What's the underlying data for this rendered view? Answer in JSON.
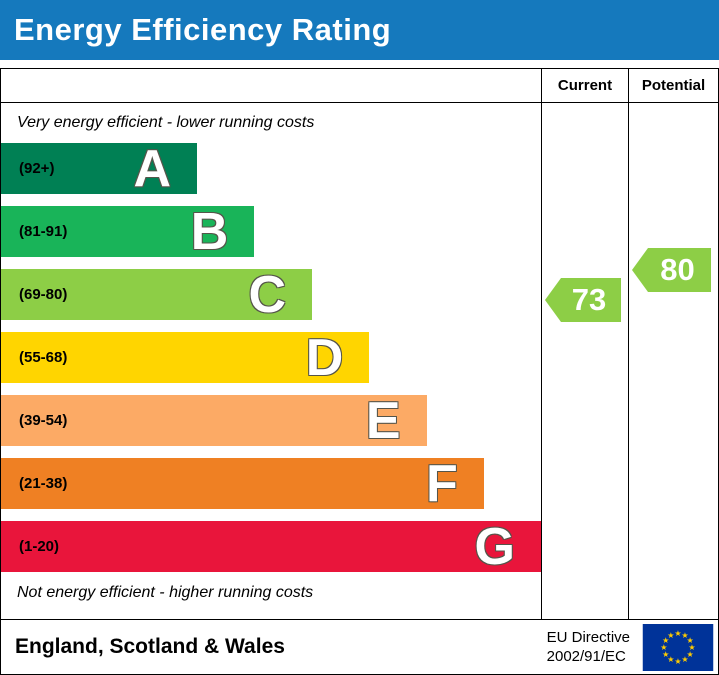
{
  "banner": {
    "title": "Energy Efficiency Rating",
    "bg": "#1579bd"
  },
  "table": {
    "current_header": "Current",
    "potential_header": "Potential"
  },
  "chart": {
    "top_note": "Very energy efficient - lower running costs",
    "bottom_note": "Not energy efficient - higher running costs",
    "bands": [
      {
        "letter": "A",
        "range": "(92+)",
        "color": "#008054",
        "width_pct": 36.3
      },
      {
        "letter": "B",
        "range": "(81-91)",
        "color": "#19b459",
        "width_pct": 46.9
      },
      {
        "letter": "C",
        "range": "(69-80)",
        "color": "#8dce46",
        "width_pct": 57.6
      },
      {
        "letter": "D",
        "range": "(55-68)",
        "color": "#ffd500",
        "width_pct": 68.2
      },
      {
        "letter": "E",
        "range": "(39-54)",
        "color": "#fcaa65",
        "width_pct": 78.8
      },
      {
        "letter": "F",
        "range": "(21-38)",
        "color": "#ef8023",
        "width_pct": 89.4
      },
      {
        "letter": "G",
        "range": "(1-20)",
        "color": "#e9153b",
        "width_pct": 100
      }
    ],
    "current": {
      "value": "73",
      "color": "#8dce46"
    },
    "potential": {
      "value": "80",
      "color": "#8dce46"
    }
  },
  "footer": {
    "region": "England, Scotland & Wales",
    "directive_line1": "EU Directive",
    "directive_line2": "2002/91/EC",
    "flag_colors": {
      "field": "#003399",
      "stars": "#ffcc00"
    }
  },
  "chart_data": {
    "type": "bar",
    "title": "Energy Efficiency Rating",
    "categories": [
      "A",
      "B",
      "C",
      "D",
      "E",
      "F",
      "G"
    ],
    "band_ranges": [
      "92+",
      "81-91",
      "69-80",
      "55-68",
      "39-54",
      "21-38",
      "1-20"
    ],
    "band_colors": [
      "#008054",
      "#19b459",
      "#8dce46",
      "#ffd500",
      "#fcaa65",
      "#ef8023",
      "#e9153b"
    ],
    "bar_relative_widths": [
      36,
      47,
      58,
      68,
      79,
      89,
      100
    ],
    "current_rating": 73,
    "potential_rating": 80,
    "current_band": "C",
    "potential_band": "C",
    "annotation_top": "Very energy efficient - lower running costs",
    "annotation_bottom": "Not energy efficient - higher running costs",
    "region": "England, Scotland & Wales",
    "directive": "EU Directive 2002/91/EC",
    "legend_position": "none",
    "grid": false
  }
}
